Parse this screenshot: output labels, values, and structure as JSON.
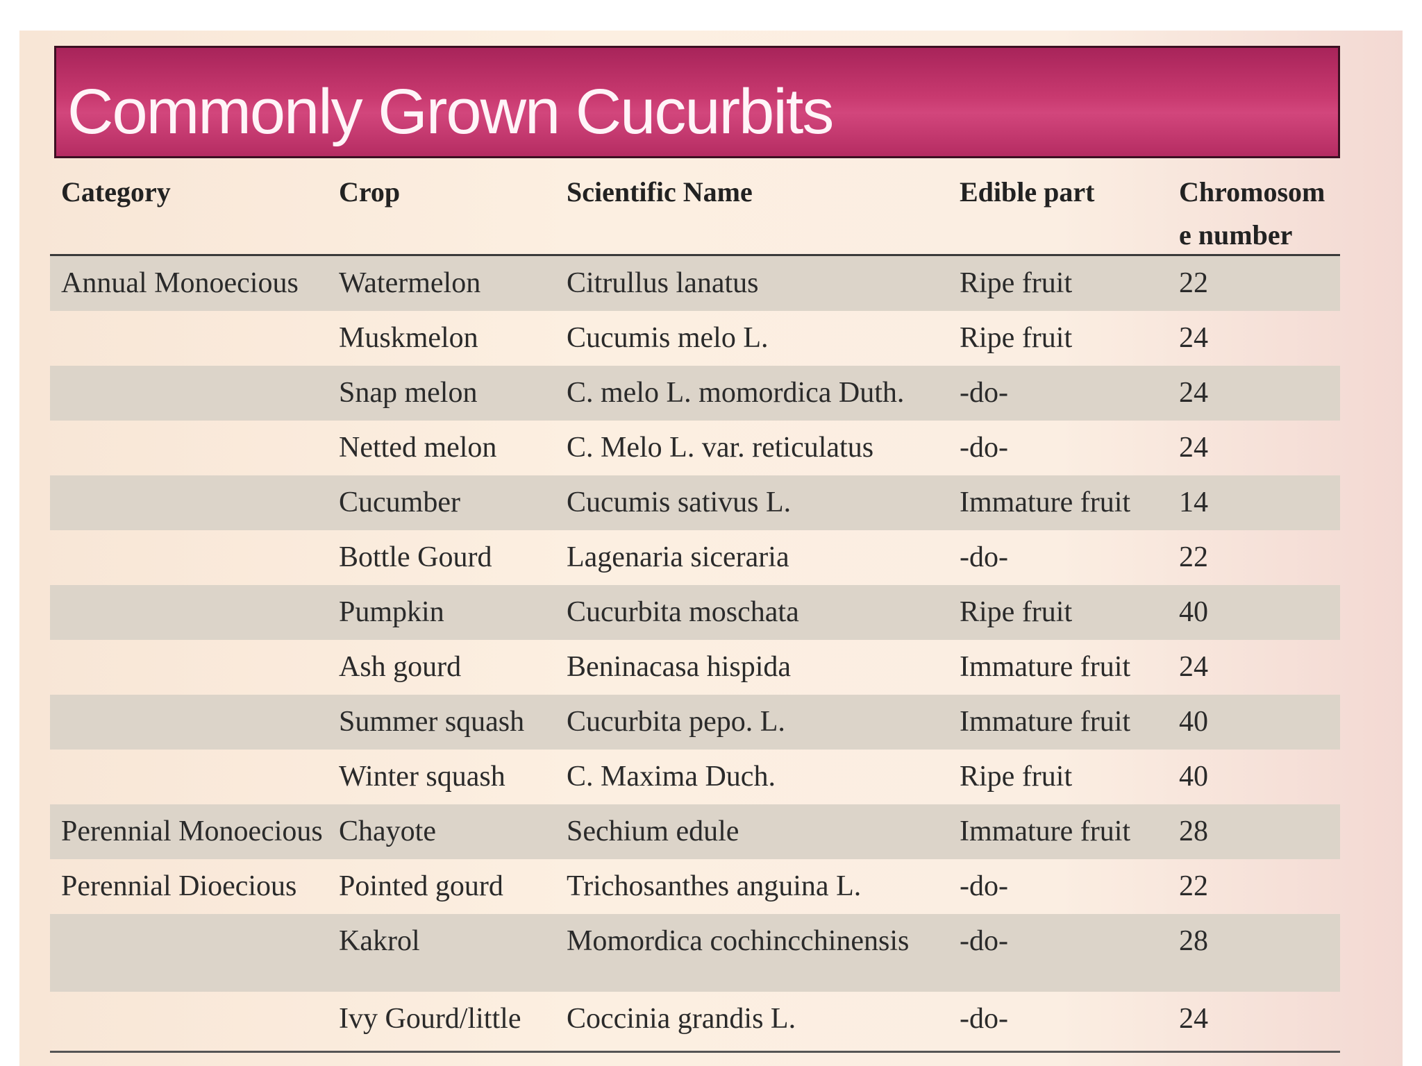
{
  "title": "Commonly Grown Cucurbits",
  "columns": [
    "Category",
    "Crop",
    "Scientific Name",
    "Edible part",
    "Chromosome number"
  ],
  "columns_display": {
    "category": "Category",
    "crop": "Crop",
    "scientific": "Scientific Name",
    "edible": "Edible part",
    "chrom_line1": "Chromosom",
    "chrom_line2": "e number"
  },
  "rows": [
    {
      "category": "Annual Monoecious",
      "crop": "Watermelon",
      "scientific": "Citrullus lanatus",
      "edible": "Ripe fruit",
      "chromosome": "22"
    },
    {
      "category": "",
      "crop": "Muskmelon",
      "scientific": "Cucumis melo L.",
      "edible": "Ripe fruit",
      "chromosome": "24"
    },
    {
      "category": "",
      "crop": "Snap melon",
      "scientific": "C. melo L. momordica Duth.",
      "edible": "-do-",
      "chromosome": "24"
    },
    {
      "category": "",
      "crop": "Netted melon",
      "scientific": "C. Melo L. var. reticulatus",
      "edible": "-do-",
      "chromosome": "24"
    },
    {
      "category": "",
      "crop": "Cucumber",
      "scientific": "Cucumis sativus L.",
      "edible": "Immature fruit",
      "chromosome": "14"
    },
    {
      "category": "",
      "crop": "Bottle Gourd",
      "scientific": "Lagenaria siceraria",
      "edible": "-do-",
      "chromosome": "22"
    },
    {
      "category": "",
      "crop": "Pumpkin",
      "scientific": "Cucurbita moschata",
      "edible": "Ripe fruit",
      "chromosome": "40"
    },
    {
      "category": "",
      "crop": "Ash gourd",
      "scientific": "Beninacasa hispida",
      "edible": "Immature fruit",
      "chromosome": "24"
    },
    {
      "category": "",
      "crop": "Summer squash",
      "scientific": "Cucurbita pepo. L.",
      "edible": "Immature fruit",
      "chromosome": "40"
    },
    {
      "category": "",
      "crop": "Winter squash",
      "scientific": "C. Maxima Duch.",
      "edible": "Ripe fruit",
      "chromosome": "40"
    },
    {
      "category": "Perennial Monoecious",
      "crop": "Chayote",
      "scientific": "Sechium edule",
      "edible": "Immature fruit",
      "chromosome": "28"
    },
    {
      "category": "Perennial Dioecious",
      "crop": "Pointed gourd",
      "scientific": "Trichosanthes anguina L.",
      "edible": "-do-",
      "chromosome": "22"
    },
    {
      "category": "",
      "crop": "Kakrol",
      "scientific": "Momordica cochincchinensis",
      "edible": "-do-",
      "chromosome": "28"
    },
    {
      "category": "",
      "crop": "Ivy Gourd/little",
      "scientific": "Coccinia grandis L.",
      "edible": "-do-",
      "chromosome": "24"
    }
  ],
  "colors": {
    "title_bar": "#c8396f",
    "shaded_row": "#dcd4c9",
    "background": "#fcefe1"
  }
}
